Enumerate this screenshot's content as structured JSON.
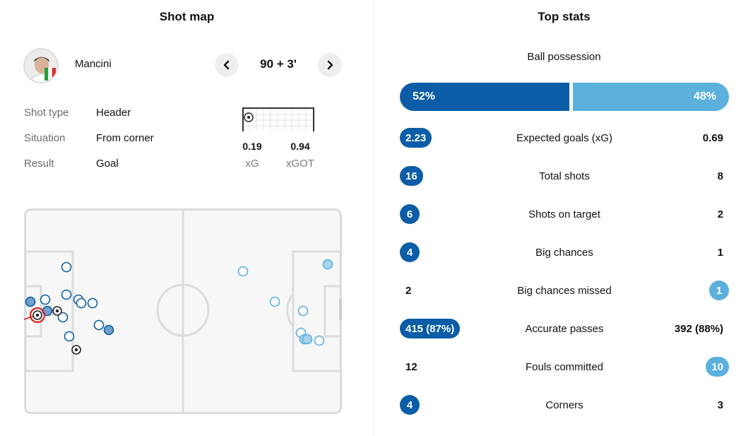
{
  "shot_map": {
    "title": "Shot map",
    "player": {
      "name": "Mancini",
      "flag": "italy-flag"
    },
    "minute": "90 + 3'",
    "info": [
      {
        "label": "Shot type",
        "value": "Header"
      },
      {
        "label": "Situation",
        "value": "From corner"
      },
      {
        "label": "Result",
        "value": "Goal"
      }
    ],
    "xg": {
      "value": "0.19",
      "label": "xG"
    },
    "xgot": {
      "value": "0.94",
      "label": "xGOT"
    }
  },
  "top_stats": {
    "title": "Top stats",
    "possession": {
      "label": "Ball possession",
      "home": "52%",
      "away": "48%",
      "home_pct": 52
    },
    "rows": [
      {
        "label": "Expected goals (xG)",
        "home": "2.23",
        "away": "0.69",
        "highlight": "home"
      },
      {
        "label": "Total shots",
        "home": "16",
        "away": "8",
        "highlight": "home"
      },
      {
        "label": "Shots on target",
        "home": "6",
        "away": "2",
        "highlight": "home"
      },
      {
        "label": "Big chances",
        "home": "4",
        "away": "1",
        "highlight": "home"
      },
      {
        "label": "Big chances missed",
        "home": "2",
        "away": "1",
        "highlight": "away"
      },
      {
        "label": "Accurate passes",
        "home": "415 (87%)",
        "away": "392 (88%)",
        "highlight": "home"
      },
      {
        "label": "Fouls committed",
        "home": "12",
        "away": "10",
        "highlight": "away"
      },
      {
        "label": "Corners",
        "home": "4",
        "away": "3",
        "highlight": "home"
      }
    ]
  },
  "colors": {
    "home": "#0a5da6",
    "away": "#5bb0dc",
    "selected": "#e02020"
  }
}
